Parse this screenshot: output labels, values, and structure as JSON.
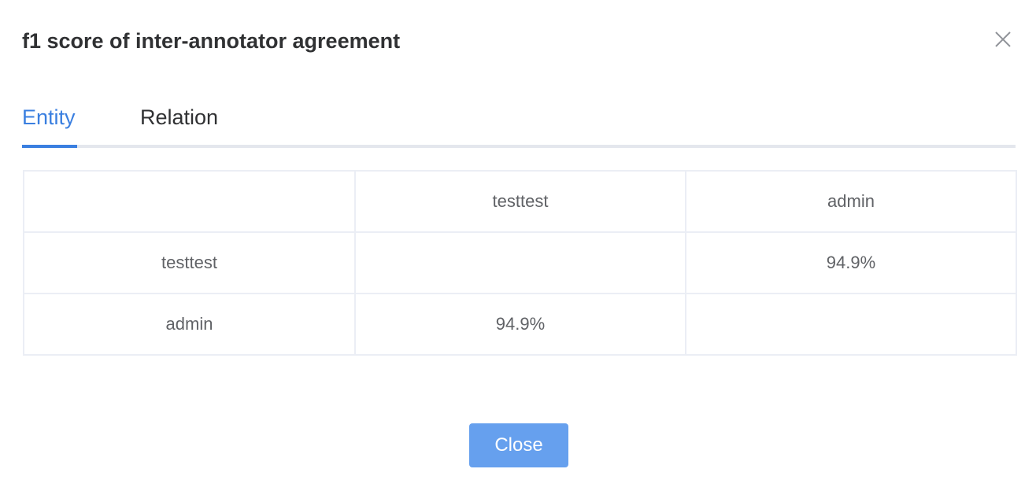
{
  "dialog": {
    "title": "f1 score of inter-annotator agreement",
    "close_icon": "close-x-icon"
  },
  "tabs": [
    {
      "label": "Entity",
      "active": true
    },
    {
      "label": "Relation",
      "active": false
    }
  ],
  "table": {
    "header": [
      "",
      "testtest",
      "admin"
    ],
    "rows": [
      {
        "label": "testtest",
        "cells": [
          "",
          "94.9%"
        ]
      },
      {
        "label": "admin",
        "cells": [
          "94.9%",
          ""
        ]
      }
    ]
  },
  "footer": {
    "close_label": "Close"
  },
  "colors": {
    "accent": "#3a7fe0",
    "button_bg": "#66a0ee",
    "border": "#ebeef5"
  }
}
